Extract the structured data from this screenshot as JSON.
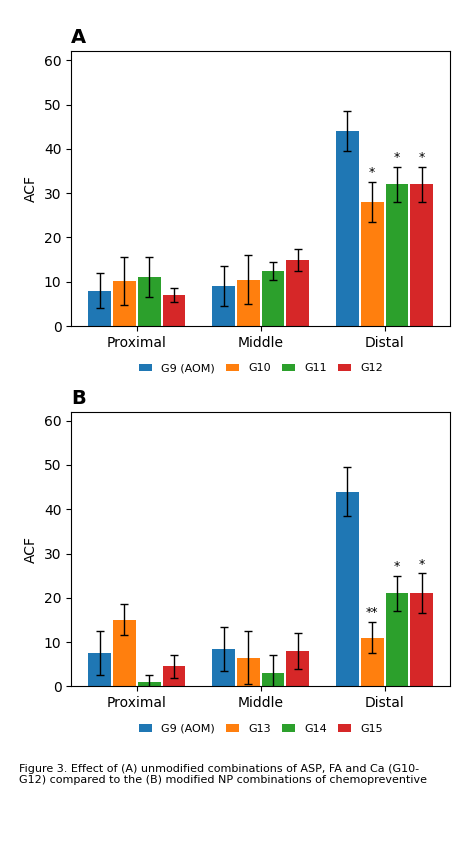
{
  "chart_data": [
    {
      "type": "bar",
      "title": "A",
      "categories": [
        "Proximal",
        "Middle",
        "Distal"
      ],
      "y_label": "ACF",
      "ylim": [
        0,
        62
      ],
      "yticks": [
        0,
        10,
        20,
        30,
        40,
        50,
        60
      ],
      "legend": "below",
      "series": [
        {
          "name": "G9 (AOM)",
          "values": [
            8.0,
            9.0,
            44.0
          ],
          "errors": [
            4.0,
            4.5,
            4.5
          ]
        },
        {
          "name": "G10",
          "values": [
            10.2,
            10.5,
            28.0
          ],
          "errors": [
            5.5,
            5.5,
            4.5
          ],
          "annotations": [
            null,
            null,
            "*"
          ]
        },
        {
          "name": "G11",
          "values": [
            11.0,
            12.5,
            32.0
          ],
          "errors": [
            4.5,
            2.0,
            4.0
          ],
          "annotations": [
            null,
            null,
            "*"
          ]
        },
        {
          "name": "G12",
          "values": [
            7.0,
            15.0,
            32.0
          ],
          "errors": [
            1.5,
            2.5,
            4.0
          ],
          "annotations": [
            null,
            null,
            "*"
          ]
        }
      ]
    },
    {
      "type": "bar",
      "title": "B",
      "categories": [
        "Proximal",
        "Middle",
        "Distal"
      ],
      "y_label": "ACF",
      "ylim": [
        0,
        62
      ],
      "yticks": [
        0,
        10,
        20,
        30,
        40,
        50,
        60
      ],
      "legend": "below",
      "series": [
        {
          "name": "G9 (AOM)",
          "values": [
            7.5,
            8.5,
            44.0
          ],
          "errors": [
            5.0,
            5.0,
            5.5
          ]
        },
        {
          "name": "G13",
          "values": [
            15.0,
            6.5,
            11.0
          ],
          "errors": [
            3.5,
            6.0,
            3.5
          ],
          "annotations": [
            null,
            null,
            "**"
          ]
        },
        {
          "name": "G14",
          "values": [
            1.0,
            3.0,
            21.0
          ],
          "errors": [
            1.5,
            4.0,
            4.0
          ],
          "annotations": [
            null,
            null,
            "*"
          ]
        },
        {
          "name": "G15",
          "values": [
            4.5,
            8.0,
            21.0
          ],
          "errors": [
            2.5,
            4.0,
            4.5
          ],
          "annotations": [
            null,
            null,
            "*"
          ]
        }
      ]
    }
  ],
  "caption": "Figure 3. Effect of (A) unmodified combinations of ASP, FA and Ca (G10-\nG12) compared to the (B) modified NP combinations of chemopreventive"
}
